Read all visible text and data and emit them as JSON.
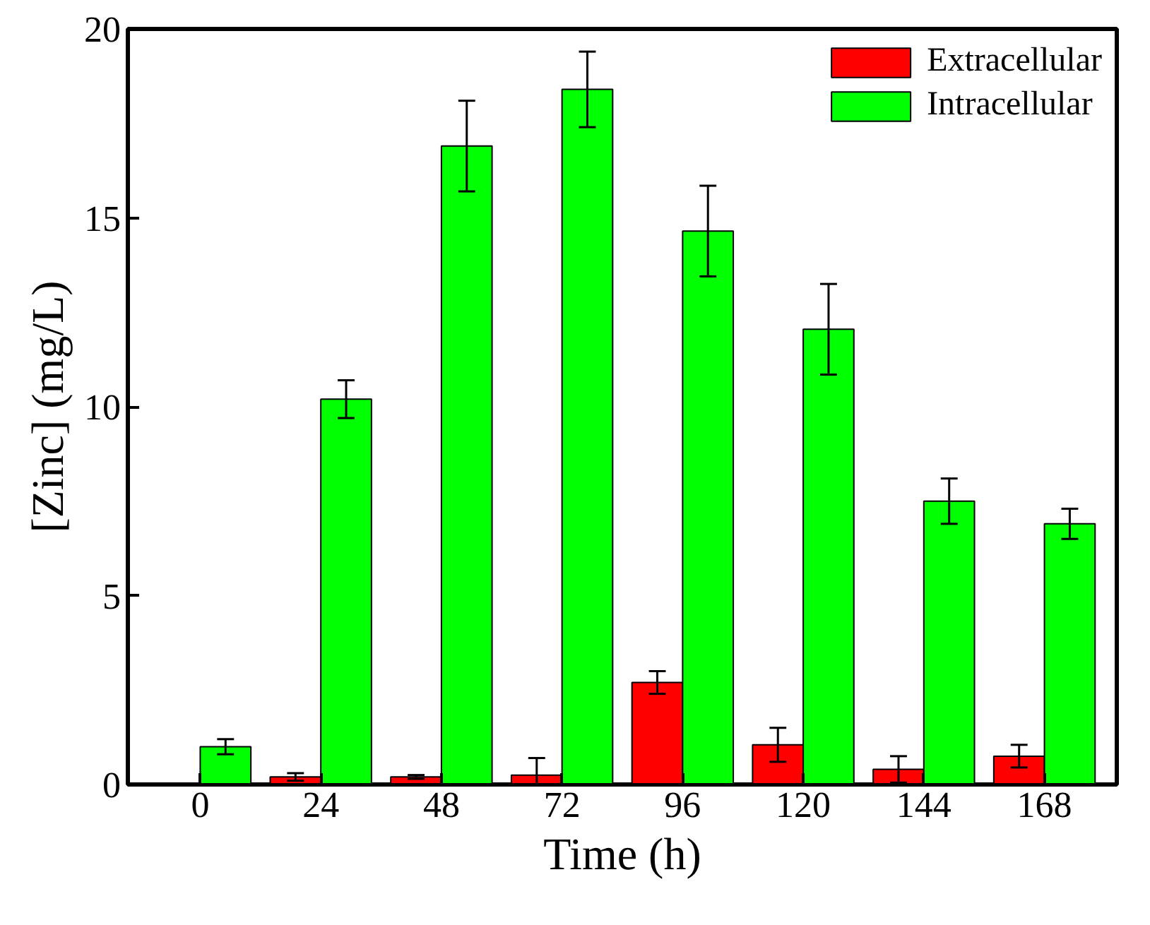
{
  "chart_data": {
    "type": "bar",
    "xlabel": "Time (h)",
    "ylabel": "[Zinc] (mg/L)",
    "categories": [
      "0",
      "24",
      "48",
      "72",
      "96",
      "120",
      "144",
      "168"
    ],
    "ylim": [
      0,
      20
    ],
    "yticks": [
      0,
      5,
      10,
      15,
      20
    ],
    "grid": false,
    "legend": "top right",
    "series": [
      {
        "name": "Extracellular",
        "color": "#ff0000",
        "values": [
          null,
          0.2,
          0.2,
          0.25,
          2.7,
          1.05,
          0.4,
          0.75
        ],
        "errors": [
          null,
          0.1,
          0.05,
          0.45,
          0.3,
          0.45,
          0.35,
          0.3
        ]
      },
      {
        "name": "Intracellular",
        "color": "#00ff00",
        "values": [
          1.0,
          10.2,
          16.9,
          18.4,
          14.65,
          12.05,
          7.5,
          6.9
        ],
        "errors": [
          0.2,
          0.5,
          1.2,
          1.0,
          1.2,
          1.2,
          0.6,
          0.4
        ]
      }
    ]
  }
}
